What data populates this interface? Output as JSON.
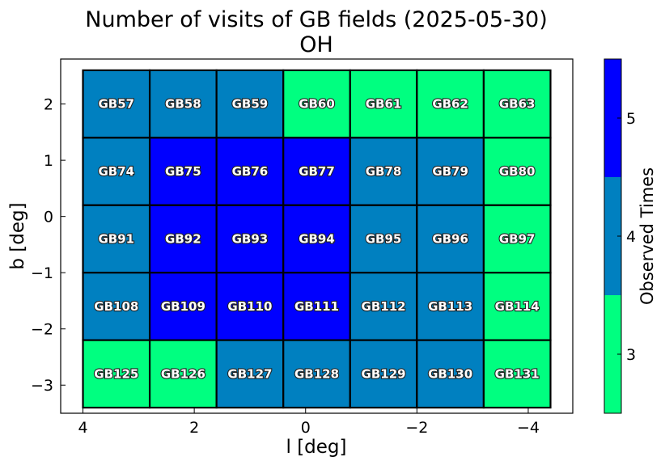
{
  "chart_data": {
    "type": "heatmap",
    "title": "Number of visits of GB fields (2025-05-30)",
    "subtitle": "OH",
    "xlabel": "l [deg]",
    "ylabel": "b [deg]",
    "xlim": [
      4.4,
      -4.8
    ],
    "ylim": [
      -3.5,
      2.8
    ],
    "x_ticks": [
      4,
      2,
      0,
      -2,
      -4
    ],
    "x_tick_labels": [
      "4",
      "2",
      "0",
      "−2",
      "−4"
    ],
    "y_ticks": [
      2,
      1,
      0,
      -1,
      -2,
      -3
    ],
    "y_tick_labels": [
      "2",
      "1",
      "0",
      "−1",
      "−2",
      "−3"
    ],
    "grid": false,
    "colorbar": {
      "label": "Observed Times",
      "range": [
        2.5,
        5.5
      ],
      "ticks": [
        3,
        4,
        5
      ],
      "tick_labels": [
        "3",
        "4",
        "5"
      ],
      "levels": [
        {
          "value": 3,
          "color": "#00ff80"
        },
        {
          "value": 4,
          "color": "#0080c0"
        },
        {
          "value": 5,
          "color": "#0000ff"
        }
      ]
    },
    "field_grid": {
      "l_edges": [
        4.0,
        2.8,
        1.6,
        0.4,
        -0.8,
        -2.0,
        -3.2,
        -4.4
      ],
      "b_edges": [
        2.6,
        1.4,
        0.2,
        -1.0,
        -2.2,
        -3.4
      ],
      "fields": [
        [
          "GB57",
          "GB58",
          "GB59",
          "GB60",
          "GB61",
          "GB62",
          "GB63"
        ],
        [
          "GB74",
          "GB75",
          "GB76",
          "GB77",
          "GB78",
          "GB79",
          "GB80"
        ],
        [
          "GB91",
          "GB92",
          "GB93",
          "GB94",
          "GB95",
          "GB96",
          "GB97"
        ],
        [
          "GB108",
          "GB109",
          "GB110",
          "GB111",
          "GB112",
          "GB113",
          "GB114"
        ],
        [
          "GB125",
          "GB126",
          "GB127",
          "GB128",
          "GB129",
          "GB130",
          "GB131"
        ]
      ],
      "visits": [
        [
          4,
          4,
          4,
          3,
          3,
          3,
          3
        ],
        [
          4,
          5,
          5,
          5,
          4,
          4,
          3
        ],
        [
          4,
          5,
          5,
          5,
          4,
          4,
          3
        ],
        [
          4,
          5,
          5,
          5,
          4,
          4,
          3
        ],
        [
          3,
          3,
          4,
          4,
          4,
          4,
          3
        ]
      ]
    }
  }
}
